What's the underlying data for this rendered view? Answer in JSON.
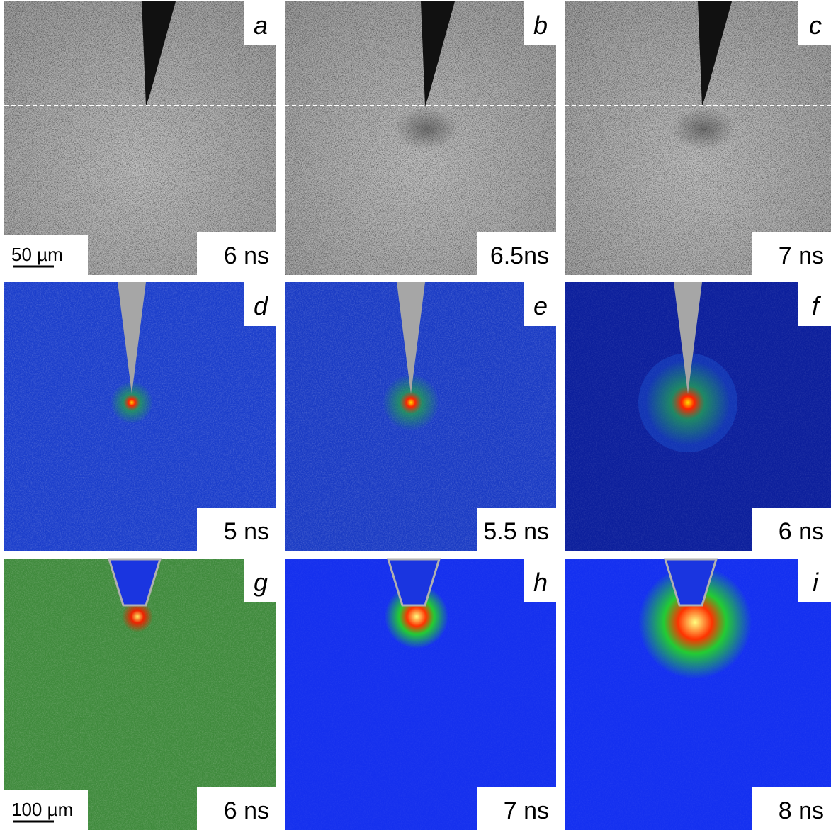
{
  "panels": [
    {
      "letter": "a",
      "time": "6 ns",
      "scale_bar": "50 µm"
    },
    {
      "letter": "b",
      "time": "6.5ns"
    },
    {
      "letter": "c",
      "time": "7 ns"
    },
    {
      "letter": "d",
      "time": "5 ns"
    },
    {
      "letter": "e",
      "time": "5.5 ns"
    },
    {
      "letter": "f",
      "time": "6 ns"
    },
    {
      "letter": "g",
      "time": "6 ns",
      "scale_bar": "100 µm"
    },
    {
      "letter": "h",
      "time": "7 ns"
    },
    {
      "letter": "i",
      "time": "8 ns"
    }
  ]
}
